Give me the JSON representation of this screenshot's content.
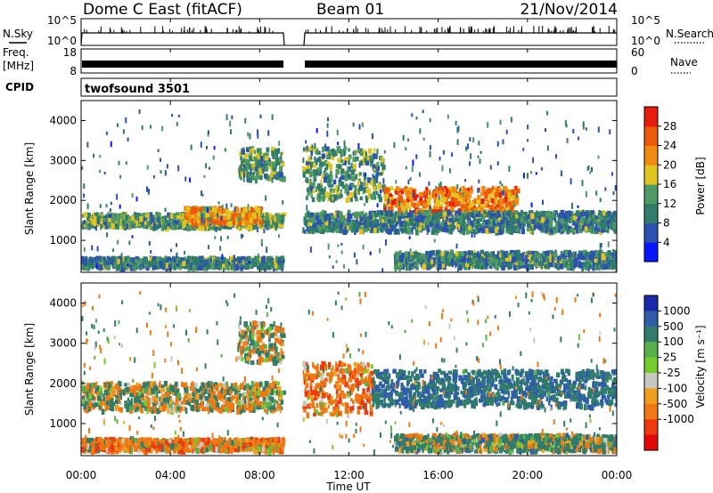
{
  "header": {
    "station": "Dome C East (fitACF)",
    "beam": "Beam 01",
    "date": "21/Nov/2014"
  },
  "panels": {
    "nsky": {
      "label": "N.Sky",
      "ticks_left": [
        "10^5",
        "10^0"
      ],
      "right_label": "N.Search",
      "ticks_right": [
        "10^5",
        "10^0"
      ]
    },
    "freq": {
      "label_line1": "Freq.",
      "label_line2": "[MHz]",
      "ticks_left": [
        "18",
        "8"
      ],
      "right_label": "Nave",
      "ticks_right": [
        "60",
        "0"
      ]
    },
    "cpid": {
      "label": "CPID",
      "value": "twofsound 3501"
    }
  },
  "time_axis": {
    "title": "Time UT",
    "ticks": [
      "00:00",
      "04:00",
      "08:00",
      "12:00",
      "16:00",
      "20:00",
      "00:00"
    ]
  },
  "range_axis": {
    "title": "Slant Range [km]",
    "ticks": [
      "1000",
      "2000",
      "3000",
      "4000"
    ]
  },
  "power_scale": {
    "title": "Power [dB]",
    "labels": [
      "4",
      "8",
      "12",
      "16",
      "20",
      "24",
      "28"
    ],
    "colors": [
      "#0a14ff",
      "#2d51b0",
      "#2f7d6a",
      "#4f9a64",
      "#e2c420",
      "#f08a10",
      "#ee5a0c",
      "#e81c0c"
    ]
  },
  "velocity_scale": {
    "title": "Velocity [m s⁻¹]",
    "labels": [
      "1000",
      "500",
      "100",
      "25",
      "-25",
      "-100",
      "-500",
      "-1000"
    ],
    "colors": [
      "#1a2aa8",
      "#2f5da8",
      "#2f7d6a",
      "#58b04a",
      "#74cc2c",
      "#c8c8c0",
      "#f0a020",
      "#f07812",
      "#ee3a10",
      "#e40808"
    ]
  },
  "chart_data": [
    {
      "type": "heatmap",
      "title": "Power [dB]",
      "xlabel": "Time UT",
      "ylabel": "Slant Range [km]",
      "xlim": [
        "00:00",
        "24:00"
      ],
      "ylim": [
        200,
        4500
      ],
      "colorbar_range": [
        0,
        30
      ],
      "data_gap_hours": [
        9.0,
        9.9
      ],
      "bands": [
        {
          "t0": 0.0,
          "t1": 9.0,
          "range_lo": 300,
          "range_hi": 550,
          "value_db": 10
        },
        {
          "t0": 0.0,
          "t1": 9.0,
          "range_lo": 1300,
          "range_hi": 1650,
          "value_db": 12
        },
        {
          "t0": 4.5,
          "t1": 8.0,
          "range_lo": 1400,
          "range_hi": 1800,
          "value_db": 20
        },
        {
          "t0": 7.0,
          "t1": 9.0,
          "range_lo": 2500,
          "range_hi": 3300,
          "value_db": 12
        },
        {
          "t0": 9.9,
          "t1": 13.5,
          "range_lo": 2000,
          "range_hi": 3300,
          "value_db": 12
        },
        {
          "t0": 13.5,
          "t1": 19.5,
          "range_lo": 1600,
          "range_hi": 2300,
          "value_db": 22
        },
        {
          "t0": 9.9,
          "t1": 24.0,
          "range_lo": 1200,
          "range_hi": 1700,
          "value_db": 10
        },
        {
          "t0": 14.0,
          "t1": 24.0,
          "range_lo": 300,
          "range_hi": 700,
          "value_db": 10
        }
      ]
    },
    {
      "type": "heatmap",
      "title": "Velocity [m s⁻¹]",
      "xlabel": "Time UT",
      "ylabel": "Slant Range [km]",
      "xlim": [
        "00:00",
        "24:00"
      ],
      "ylim": [
        200,
        4500
      ],
      "colorbar_range": [
        -1000,
        1000
      ],
      "data_gap_hours": [
        9.0,
        9.9
      ],
      "bands": [
        {
          "t0": 0.0,
          "t1": 9.0,
          "range_lo": 300,
          "range_hi": 600,
          "value_ms": -150
        },
        {
          "t0": 0.0,
          "t1": 9.0,
          "range_lo": 1300,
          "range_hi": 2000,
          "value_ms": 0
        },
        {
          "t0": 7.0,
          "t1": 9.0,
          "range_lo": 2500,
          "range_hi": 3500,
          "value_ms": 0
        },
        {
          "t0": 9.9,
          "t1": 13.0,
          "range_lo": 1200,
          "range_hi": 2500,
          "value_ms": -200
        },
        {
          "t0": 13.0,
          "t1": 24.0,
          "range_lo": 1400,
          "range_hi": 2300,
          "value_ms": 300
        },
        {
          "t0": 14.0,
          "t1": 24.0,
          "range_lo": 300,
          "range_hi": 700,
          "value_ms": 100
        }
      ]
    }
  ]
}
